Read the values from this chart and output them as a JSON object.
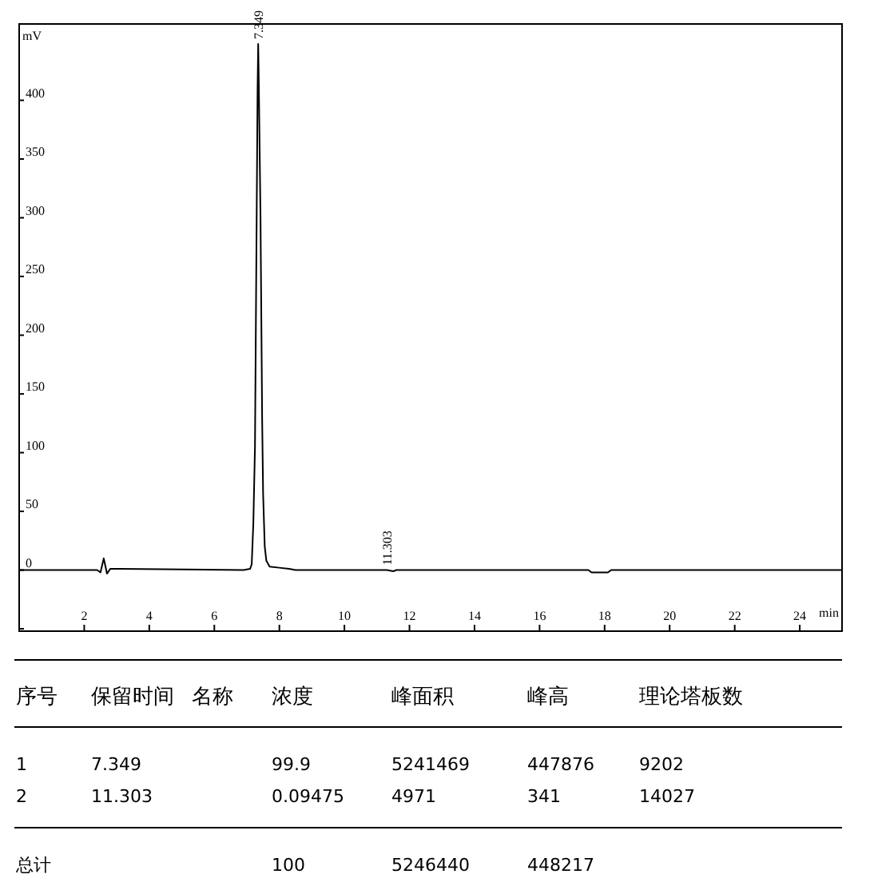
{
  "chart_data": [
    {
      "type": "line",
      "xlabel": "min",
      "ylabel": "mV",
      "xlim": [
        0,
        25.3
      ],
      "ylim": [
        -52,
        465
      ],
      "xticks": [
        2,
        4,
        6,
        8,
        10,
        12,
        14,
        16,
        18,
        20,
        22,
        24
      ],
      "yticks": [
        {
          "value": -50,
          "label": null
        },
        0,
        50,
        100,
        150,
        200,
        250,
        300,
        350,
        400
      ],
      "series": [
        {
          "color": "#000000",
          "x": [
            0,
            2.4,
            2.5,
            2.6,
            2.7,
            2.8,
            3.1,
            6.9,
            7.1,
            7.15,
            7.2,
            7.25,
            7.3,
            7.33,
            7.349,
            7.37,
            7.42,
            7.47,
            7.5,
            7.55,
            7.6,
            7.7,
            8.0,
            8.3,
            8.5,
            11.2,
            11.303,
            11.5,
            11.6,
            17.5,
            17.6,
            18.1,
            18.2,
            25.3
          ],
          "values": [
            0,
            0,
            -2,
            10,
            -3,
            1,
            1,
            0,
            1,
            5,
            40,
            105,
            295,
            410,
            448,
            410,
            300,
            130,
            65,
            20,
            8,
            3,
            2,
            1,
            0,
            0,
            0,
            -1,
            0,
            0,
            -2,
            -2,
            0,
            0
          ]
        }
      ],
      "annotations": [
        {
          "text": "7.349",
          "x": 7.349,
          "y": 448
        },
        {
          "text": "11.303",
          "x": 11.303,
          "y": 0
        }
      ]
    },
    {
      "type": "other",
      "annotations": [
        "序号",
        "保留时间",
        "名称",
        "浓度",
        "峰面积",
        "峰高",
        "理论塔板数",
        "1",
        "7.349",
        "99.9",
        "5241469",
        "447876",
        "9202",
        "2",
        "11.303",
        "0.09475",
        "4971",
        "341",
        "14027",
        "总计",
        "100",
        "5246440",
        "448217"
      ]
    }
  ]
}
